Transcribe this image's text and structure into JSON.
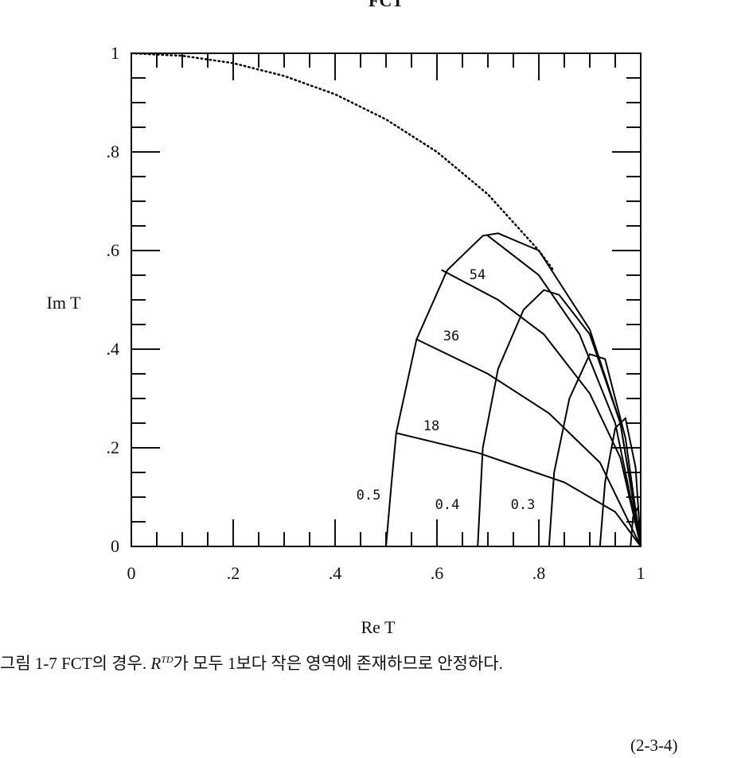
{
  "chart_data": {
    "type": "line",
    "title": "FCT",
    "xlabel": "Re T",
    "ylabel": "Im T",
    "xlim": [
      0,
      1
    ],
    "ylim": [
      0,
      1
    ],
    "xticks": [
      0,
      {
        "value": 0.2,
        "label": ".2"
      },
      {
        "value": 0.4,
        "label": ".4"
      },
      {
        "value": 0.6,
        "label": ".6"
      },
      {
        "value": 0.8,
        "label": ".8"
      },
      1
    ],
    "yticks": [
      0,
      {
        "value": 0.2,
        "label": ".2"
      },
      {
        "value": 0.4,
        "label": ".4"
      },
      {
        "value": 0.6,
        "label": ".6"
      },
      {
        "value": 0.8,
        "label": ".8"
      },
      1
    ],
    "series": [
      {
        "color": "#000000",
        "line_style": "dotted",
        "x": [
          0,
          0.1,
          0.2,
          0.3,
          0.4,
          0.5,
          0.6,
          0.7,
          0.8,
          0.83
        ],
        "values": [
          1,
          0.995,
          0.98,
          0.954,
          0.917,
          0.866,
          0.8,
          0.714,
          0.6,
          0.558
        ]
      },
      {
        "name": "0.5",
        "color": "#000000",
        "line_style": "solid",
        "x": [
          0.5,
          0.51,
          0.52,
          0.56,
          0.62,
          0.69,
          0.72,
          0.8,
          0.9,
          0.96,
          1
        ],
        "values": [
          0,
          0.12,
          0.23,
          0.42,
          0.56,
          0.63,
          0.635,
          0.6,
          0.44,
          0.25,
          0
        ]
      },
      {
        "name": "0.4",
        "color": "#000000",
        "line_style": "solid",
        "x": [
          0.68,
          0.69,
          0.72,
          0.77,
          0.81,
          0.84,
          0.9,
          0.96,
          1
        ],
        "values": [
          0,
          0.2,
          0.36,
          0.48,
          0.52,
          0.51,
          0.43,
          0.25,
          0
        ]
      },
      {
        "name": "0.3",
        "color": "#000000",
        "line_style": "solid",
        "x": [
          0.82,
          0.83,
          0.86,
          0.9,
          0.93,
          0.97,
          1
        ],
        "values": [
          0,
          0.15,
          0.3,
          0.39,
          0.38,
          0.22,
          0
        ]
      },
      {
        "color": "#000000",
        "line_style": "solid",
        "x": [
          0.92,
          0.93,
          0.95,
          0.97,
          0.99,
          1
        ],
        "values": [
          0,
          0.13,
          0.24,
          0.26,
          0.16,
          0
        ]
      },
      {
        "color": "#000000",
        "line_style": "solid",
        "x": [
          0.98,
          0.985,
          0.995,
          1
        ],
        "values": [
          0,
          0.06,
          0.08,
          0
        ]
      },
      {
        "name": "18",
        "color": "#000000",
        "line_style": "solid",
        "x": [
          0.52,
          0.68,
          0.85,
          0.95,
          1
        ],
        "values": [
          0.23,
          0.19,
          0.13,
          0.07,
          0
        ]
      },
      {
        "name": "36",
        "color": "#000000",
        "line_style": "solid",
        "x": [
          0.56,
          0.7,
          0.82,
          0.92,
          1
        ],
        "values": [
          0.42,
          0.35,
          0.27,
          0.17,
          0
        ]
      },
      {
        "name": "54",
        "color": "#000000",
        "line_style": "solid",
        "x": [
          0.61,
          0.72,
          0.81,
          0.9,
          0.96,
          1
        ],
        "values": [
          0.56,
          0.5,
          0.43,
          0.31,
          0.18,
          0
        ]
      },
      {
        "color": "#000000",
        "line_style": "solid",
        "x": [
          0.7,
          0.8,
          0.88,
          0.95,
          1
        ],
        "values": [
          0.63,
          0.55,
          0.43,
          0.25,
          0
        ]
      }
    ]
  },
  "caption": {
    "before": "그림 1-7  FCT의 경우. ",
    "symbol": "R",
    "superscript": "TD",
    "after": "가 모두 1보다 작은 영역에 존재하므로 안정하다."
  },
  "page_number": "(2-3-4)"
}
